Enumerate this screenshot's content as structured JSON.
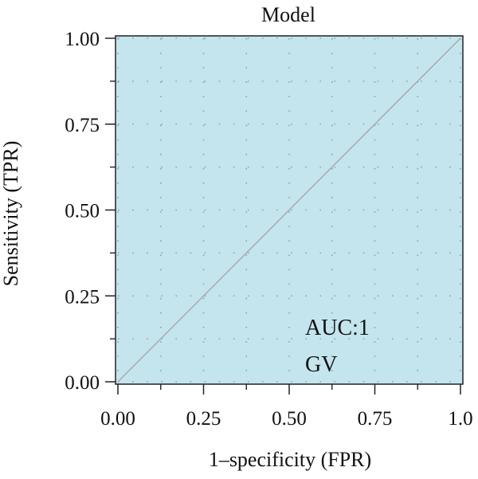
{
  "chart_data": {
    "type": "line",
    "title": "Model",
    "xlabel": "1–specificity (FPR)",
    "ylabel": "Sensitivity (TPR)",
    "xlim": [
      0,
      1
    ],
    "ylim": [
      0,
      1
    ],
    "x_ticks": [
      {
        "value": 0,
        "label": "0.00"
      },
      {
        "value": 0.25,
        "label": "0.25"
      },
      {
        "value": 0.5,
        "label": "0.50"
      },
      {
        "value": 0.75,
        "label": "0.75"
      },
      {
        "value": 1,
        "label": "1.0"
      }
    ],
    "y_ticks": [
      {
        "value": 0,
        "label": "0.00"
      },
      {
        "value": 0.25,
        "label": "0.25"
      },
      {
        "value": 0.5,
        "label": "0.50"
      },
      {
        "value": 0.75,
        "label": "0.75"
      },
      {
        "value": 1,
        "label": "1.00"
      }
    ],
    "series": [
      {
        "x": [
          0,
          1
        ],
        "y": [
          0,
          1
        ],
        "color": "#aaaaaa"
      }
    ],
    "annotations": [
      "AUC:1",
      "GV"
    ],
    "grid": true,
    "colors": {
      "panel": "#c4e5ed",
      "grid": "#7fa7ae",
      "diagonal": "#aaaaaa",
      "axis": "#222222"
    }
  }
}
